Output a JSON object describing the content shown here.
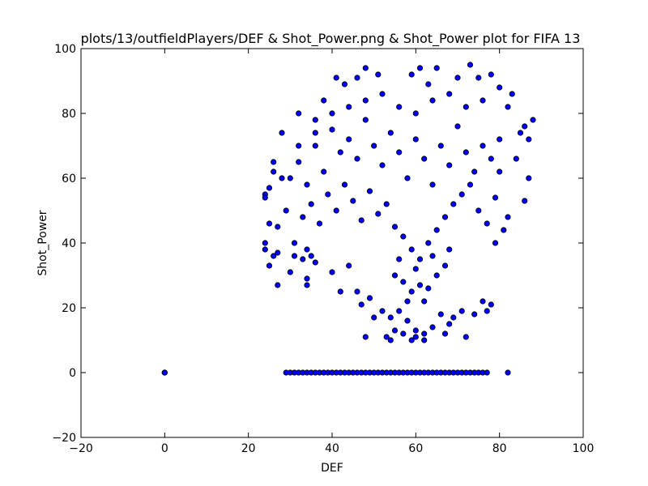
{
  "chart_data": {
    "type": "scatter",
    "title": "plots/13/outfieldPlayers/DEF & Shot_Power.png & Shot_Power plot for FIFA 13",
    "xlabel": "DEF",
    "ylabel": "Shot_Power",
    "xlim": [
      -20,
      100
    ],
    "ylim": [
      -20,
      100
    ],
    "xticks": [
      "−20",
      "0",
      "20",
      "40",
      "60",
      "80",
      "100"
    ],
    "yticks": [
      "−20",
      "0",
      "20",
      "40",
      "60",
      "80",
      "100"
    ],
    "grid": false,
    "legend": "none",
    "marker_color": "#0000ff",
    "marker_edge_color": "#000000",
    "series": [
      {
        "points": [
          [
            0,
            0
          ],
          [
            0,
            0
          ],
          [
            0,
            0
          ],
          [
            24,
            40
          ],
          [
            24,
            38
          ],
          [
            25,
            33
          ],
          [
            25,
            46
          ],
          [
            26,
            36
          ],
          [
            27,
            27
          ],
          [
            27,
            37
          ],
          [
            24,
            55
          ],
          [
            24,
            54
          ],
          [
            25,
            57
          ],
          [
            26,
            62
          ],
          [
            26,
            65
          ],
          [
            27,
            45
          ],
          [
            28,
            74
          ],
          [
            28,
            60
          ],
          [
            29,
            50
          ],
          [
            30,
            31
          ],
          [
            31,
            36
          ],
          [
            31,
            40
          ],
          [
            32,
            80
          ],
          [
            33,
            35
          ],
          [
            34,
            38
          ],
          [
            34,
            27
          ],
          [
            34,
            29
          ],
          [
            35,
            36
          ],
          [
            36,
            78
          ],
          [
            36,
            34
          ],
          [
            38,
            84
          ],
          [
            40,
            31
          ],
          [
            41,
            91
          ],
          [
            42,
            25
          ],
          [
            43,
            89
          ],
          [
            44,
            33
          ],
          [
            46,
            91
          ],
          [
            46,
            25
          ],
          [
            47,
            21
          ],
          [
            48,
            94
          ],
          [
            48,
            11
          ],
          [
            49,
            23
          ],
          [
            50,
            17
          ],
          [
            51,
            92
          ],
          [
            52,
            19
          ],
          [
            53,
            11
          ],
          [
            54,
            10
          ],
          [
            54,
            17
          ],
          [
            55,
            13
          ],
          [
            56,
            19
          ],
          [
            57,
            12
          ],
          [
            58,
            16
          ],
          [
            59,
            92
          ],
          [
            59,
            10
          ],
          [
            60,
            13
          ],
          [
            60,
            11
          ],
          [
            61,
            94
          ],
          [
            62,
            10
          ],
          [
            62,
            12
          ],
          [
            63,
            89
          ],
          [
            64,
            14
          ],
          [
            65,
            94
          ],
          [
            66,
            18
          ],
          [
            67,
            12
          ],
          [
            68,
            15
          ],
          [
            69,
            17
          ],
          [
            70,
            91
          ],
          [
            71,
            19
          ],
          [
            72,
            11
          ],
          [
            73,
            95
          ],
          [
            74,
            18
          ],
          [
            75,
            91
          ],
          [
            76,
            22
          ],
          [
            77,
            19
          ],
          [
            78,
            92
          ],
          [
            78,
            21
          ],
          [
            80,
            88
          ],
          [
            81,
            44
          ],
          [
            82,
            82
          ],
          [
            82,
            48
          ],
          [
            83,
            86
          ],
          [
            84,
            66
          ],
          [
            85,
            74
          ],
          [
            86,
            53
          ],
          [
            86,
            76
          ],
          [
            87,
            60
          ],
          [
            87,
            72
          ],
          [
            88,
            78
          ],
          [
            80,
            62
          ],
          [
            79,
            40
          ]
        ]
      },
      {
        "points": [
          [
            29,
            0
          ],
          [
            30,
            0
          ],
          [
            31,
            0
          ],
          [
            32,
            0
          ],
          [
            33,
            0
          ],
          [
            34,
            0
          ],
          [
            35,
            0
          ],
          [
            36,
            0
          ],
          [
            37,
            0
          ],
          [
            38,
            0
          ],
          [
            39,
            0
          ],
          [
            40,
            0
          ],
          [
            41,
            0
          ],
          [
            42,
            0
          ],
          [
            43,
            0
          ],
          [
            44,
            0
          ],
          [
            45,
            0
          ],
          [
            46,
            0
          ],
          [
            47,
            0
          ],
          [
            48,
            0
          ],
          [
            49,
            0
          ],
          [
            50,
            0
          ],
          [
            51,
            0
          ],
          [
            52,
            0
          ],
          [
            53,
            0
          ],
          [
            54,
            0
          ],
          [
            55,
            0
          ],
          [
            56,
            0
          ],
          [
            57,
            0
          ],
          [
            58,
            0
          ],
          [
            59,
            0
          ],
          [
            60,
            0
          ],
          [
            61,
            0
          ],
          [
            62,
            0
          ],
          [
            63,
            0
          ],
          [
            64,
            0
          ],
          [
            65,
            0
          ],
          [
            66,
            0
          ],
          [
            67,
            0
          ],
          [
            68,
            0
          ],
          [
            69,
            0
          ],
          [
            70,
            0
          ],
          [
            71,
            0
          ],
          [
            72,
            0
          ],
          [
            73,
            0
          ],
          [
            74,
            0
          ],
          [
            75,
            0
          ],
          [
            76,
            0
          ],
          [
            77,
            0
          ],
          [
            82,
            0
          ]
        ]
      },
      {
        "points": [
          [
            30,
            60
          ],
          [
            32,
            65
          ],
          [
            34,
            58
          ],
          [
            36,
            70
          ],
          [
            38,
            62
          ],
          [
            40,
            75
          ],
          [
            42,
            68
          ],
          [
            44,
            72
          ],
          [
            46,
            66
          ],
          [
            48,
            78
          ],
          [
            50,
            70
          ],
          [
            52,
            64
          ],
          [
            54,
            74
          ],
          [
            56,
            68
          ],
          [
            58,
            60
          ],
          [
            60,
            72
          ],
          [
            62,
            66
          ],
          [
            64,
            58
          ],
          [
            66,
            70
          ],
          [
            68,
            64
          ],
          [
            70,
            76
          ],
          [
            72,
            68
          ],
          [
            74,
            62
          ],
          [
            76,
            70
          ],
          [
            78,
            66
          ],
          [
            80,
            72
          ],
          [
            33,
            48
          ],
          [
            35,
            52
          ],
          [
            37,
            46
          ],
          [
            39,
            55
          ],
          [
            41,
            50
          ],
          [
            43,
            58
          ],
          [
            45,
            53
          ],
          [
            47,
            47
          ],
          [
            49,
            56
          ],
          [
            51,
            49
          ],
          [
            53,
            52
          ],
          [
            55,
            45
          ],
          [
            57,
            42
          ],
          [
            59,
            38
          ],
          [
            61,
            35
          ],
          [
            63,
            40
          ],
          [
            65,
            44
          ],
          [
            67,
            48
          ],
          [
            69,
            52
          ],
          [
            71,
            55
          ],
          [
            73,
            58
          ],
          [
            75,
            50
          ],
          [
            77,
            46
          ],
          [
            79,
            54
          ],
          [
            55,
            30
          ],
          [
            57,
            28
          ],
          [
            59,
            25
          ],
          [
            61,
            27
          ],
          [
            63,
            26
          ],
          [
            65,
            30
          ],
          [
            67,
            33
          ],
          [
            56,
            35
          ],
          [
            60,
            32
          ],
          [
            64,
            36
          ],
          [
            68,
            38
          ],
          [
            58,
            22
          ],
          [
            62,
            22
          ],
          [
            44,
            82
          ],
          [
            48,
            84
          ],
          [
            52,
            86
          ],
          [
            56,
            82
          ],
          [
            60,
            80
          ],
          [
            64,
            84
          ],
          [
            68,
            86
          ],
          [
            72,
            82
          ],
          [
            76,
            84
          ],
          [
            40,
            80
          ],
          [
            36,
            74
          ],
          [
            32,
            70
          ]
        ]
      }
    ]
  }
}
